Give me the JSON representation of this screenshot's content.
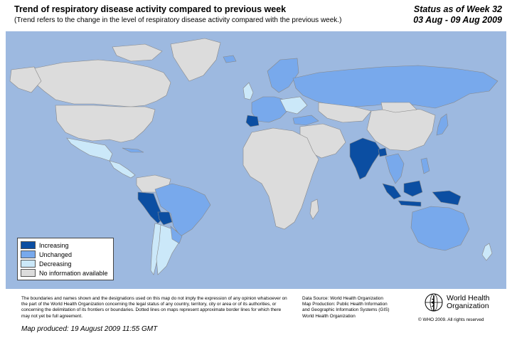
{
  "header": {
    "title": "Trend of respiratory disease activity compared to previous week",
    "subtitle": "(Trend refers to the change in the level of respiratory disease activity compared with the previous week.)",
    "status_line1": "Status as of Week 32",
    "status_line2": "03 Aug - 09 Aug 2009"
  },
  "colors": {
    "ocean": "#9DB9E0",
    "increasing": "#0B4EA2",
    "unchanged": "#78A9EC",
    "decreasing": "#CBE8F9",
    "no_info": "#DCDCDC",
    "border": "#888888"
  },
  "legend": {
    "items": [
      {
        "label": "Increasing",
        "color": "#0B4EA2"
      },
      {
        "label": "Unchanged",
        "color": "#78A9EC"
      },
      {
        "label": "Decreasing",
        "color": "#CBE8F9"
      },
      {
        "label": "No information available",
        "color": "#DCDCDC"
      }
    ]
  },
  "footer": {
    "disclaimer": "The boundaries and names shown and the designations used on this map do not imply the expression of any opinion whatsoever on the part of the World Health Organization concerning the legal status of any country, territory, city or area or of its authorities, or concerning the delimitation of its frontiers or boundaries. Dotted lines on maps represent approximate border lines for which there may not yet be full agreement.",
    "produced": "Map produced: 19 August 2009 11:55 GMT",
    "source_line1": "Data Source: World Health Organization",
    "source_line2": "Map Production: Public Health Information",
    "source_line3": "and Geographic Information Systems (GIS)",
    "source_line4": "World Health Organization",
    "org_name_line1": "World Health",
    "org_name_line2": "Organization",
    "copyright": "© WHO 2009. All rights reserved"
  }
}
